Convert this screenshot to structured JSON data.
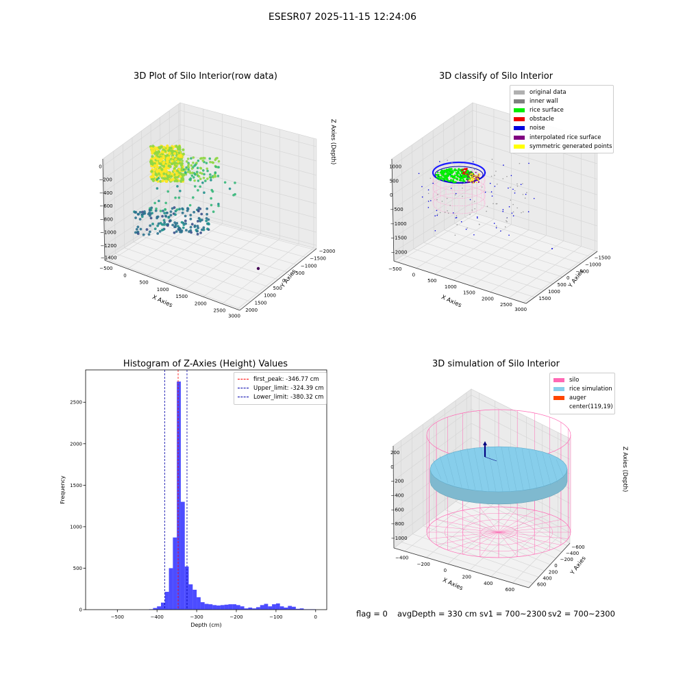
{
  "figure": {
    "suptitle": "ESESR07 2025-11-15 12:24:06"
  },
  "footer": {
    "flag": "flag = 0",
    "avg_depth": "avgDepth = 330 cm",
    "sv1": "sv1 = 700~2300",
    "sv2": "sv2 = 700~2300"
  },
  "chart_data": [
    {
      "type": "scatter",
      "title": "3D Plot of Silo Interior(row data)",
      "xlabel": "X Axies",
      "ylabel": "Y Axies",
      "zlabel": "Z Axies (Depth)",
      "x_ticks": [
        "−500",
        "0",
        "500",
        "1000",
        "1500",
        "2000",
        "2500",
        "3000"
      ],
      "y_ticks": [
        "−2000",
        "−1500",
        "−1000",
        "−500",
        "0",
        "500",
        "1000",
        "1500",
        "2000"
      ],
      "z_ticks": [
        "0",
        "−200",
        "−400",
        "−600",
        "−800",
        "−1000",
        "−1200",
        "−1400"
      ],
      "xlim": [
        -600,
        3100
      ],
      "ylim": [
        -2000,
        2000
      ],
      "zlim": [
        -1450,
        50
      ],
      "colormap": [
        "#440154",
        "#31688e",
        "#35b779",
        "#fde725"
      ]
    },
    {
      "type": "scatter",
      "title": "3D classify of Silo Interior",
      "xlabel": "X Axies",
      "ylabel": "Y Axies",
      "zlabel": "Z Axies (Depth)",
      "x_ticks": [
        "−500",
        "0",
        "500",
        "1000",
        "1500",
        "2000",
        "2500",
        "3000"
      ],
      "y_ticks": [
        "−1500",
        "−1000",
        "−500",
        "0",
        "500",
        "1000",
        "1500"
      ],
      "z_ticks": [
        "1000",
        "500",
        "0",
        "−500",
        "−1000",
        "−1500",
        "−2000"
      ],
      "legend": [
        {
          "name": "original data",
          "color": "#b0b0b0"
        },
        {
          "name": "inner wall",
          "color": "#808080"
        },
        {
          "name": "rice surface",
          "color": "#00ee00"
        },
        {
          "name": "obstacle",
          "color": "#ee0000"
        },
        {
          "name": "noise",
          "color": "#0000dd"
        },
        {
          "name": "interpolated rice surface",
          "color": "#800080"
        },
        {
          "name": "symmetric generated points",
          "color": "#ffff00"
        }
      ],
      "legend_position": "top-right"
    },
    {
      "type": "bar",
      "title": "Histogram of Z-Axies (Height) Values",
      "xlabel": "Depth (cm)",
      "ylabel": "Frequency",
      "xlim": [
        -580,
        28
      ],
      "ylim": [
        0,
        2890
      ],
      "x_ticks": [
        -500,
        -400,
        -300,
        -200,
        -100,
        0
      ],
      "x_tick_labels": [
        "−500",
        "−400",
        "−300",
        "−200",
        "−100",
        "0"
      ],
      "y_ticks": [
        0,
        500,
        1000,
        1500,
        2000,
        2500
      ],
      "bin_width": 10,
      "bin_starts": [
        -420,
        -410,
        -400,
        -390,
        -380,
        -370,
        -360,
        -350,
        -340,
        -330,
        -320,
        -310,
        -300,
        -290,
        -280,
        -270,
        -260,
        -250,
        -240,
        -230,
        -220,
        -210,
        -200,
        -190,
        -180,
        -170,
        -160,
        -150,
        -140,
        -130,
        -120,
        -110,
        -100,
        -90,
        -80,
        -70,
        -60,
        -50,
        -40,
        -30,
        -20,
        -10
      ],
      "values": [
        5,
        20,
        40,
        85,
        215,
        500,
        870,
        2750,
        1300,
        520,
        305,
        240,
        150,
        90,
        70,
        65,
        55,
        50,
        55,
        60,
        65,
        65,
        55,
        40,
        15,
        25,
        15,
        30,
        55,
        70,
        40,
        65,
        75,
        40,
        25,
        45,
        35,
        10,
        15,
        5,
        5,
        5
      ],
      "bar_color": "#0000ff",
      "vlines": [
        {
          "label": "first_peak: -346.77 cm",
          "value": -346.77,
          "color": "#ff0000"
        },
        {
          "label": "Upper_limit: -324.39 cm",
          "value": -324.39,
          "color": "#0000aa"
        },
        {
          "label": "Lower_limit: -380.32 cm",
          "value": -380.32,
          "color": "#0000aa"
        }
      ],
      "legend_position": "top-right"
    },
    {
      "type": "scatter",
      "title": "3D simulation of Silo Interior",
      "xlabel": "X Axies",
      "ylabel": "Y Axies",
      "zlabel": "Z Axies (Depth)",
      "x_ticks": [
        "−400",
        "−200",
        "0",
        "200",
        "400",
        "600"
      ],
      "y_ticks": [
        "−600",
        "−400",
        "−200",
        "0",
        "200",
        "400",
        "600"
      ],
      "z_ticks": [
        "200",
        "0",
        "−200",
        "−400",
        "−600",
        "−800",
        "−1000"
      ],
      "legend": [
        {
          "name": "silo",
          "color": "#ff69b4"
        },
        {
          "name": "rice simulation",
          "color": "#87ceeb"
        },
        {
          "name": "auger",
          "color": "#ff4500"
        },
        {
          "name": "center(119,19)",
          "color": ""
        }
      ],
      "legend_position": "top-right"
    }
  ]
}
